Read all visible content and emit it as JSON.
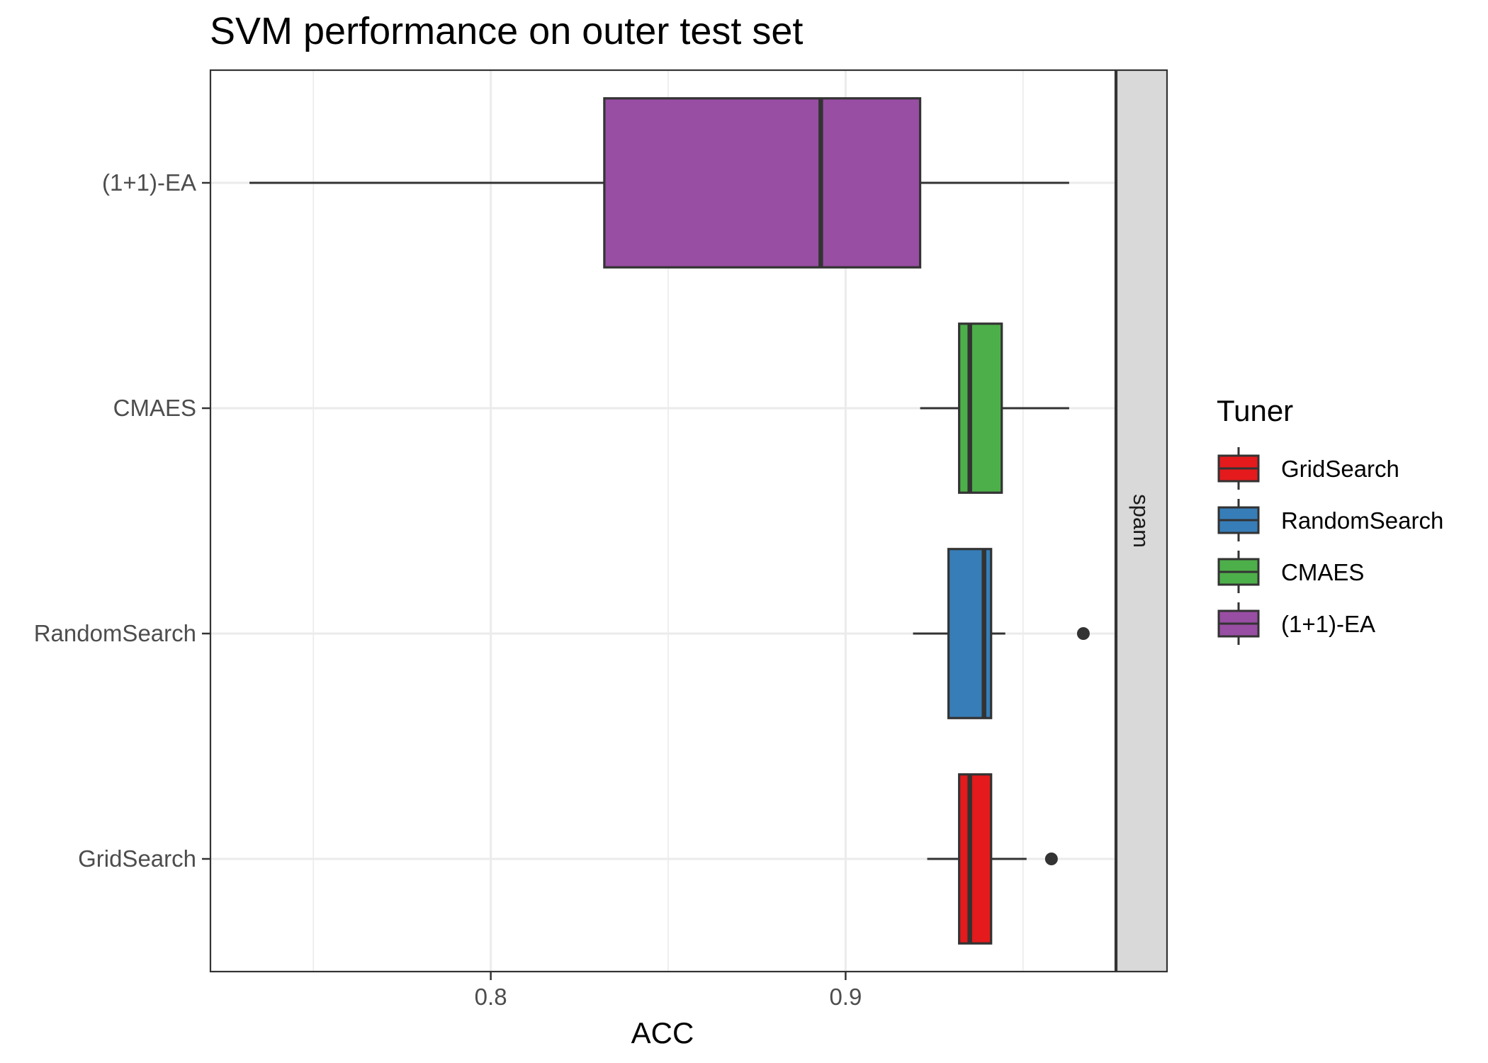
{
  "chart_data": {
    "type": "boxplot",
    "title": "SVM performance on outer test set",
    "xlabel": "ACC",
    "ylabel": "",
    "xlim": [
      0.721,
      0.976
    ],
    "x_ticks": [
      0.8,
      0.9
    ],
    "x_tick_labels": [
      "0.8",
      "0.9"
    ],
    "x_minor_gridlines": [
      0.75,
      0.85,
      0.95
    ],
    "grid": true,
    "facet_label": "spam",
    "categories": [
      "(1+1)-EA",
      "CMAES",
      "RandomSearch",
      "GridSearch"
    ],
    "series": [
      {
        "name": "(1+1)-EA",
        "color": "#984EA3",
        "whisker_low": 0.732,
        "q1": 0.832,
        "median": 0.893,
        "q3": 0.921,
        "whisker_high": 0.963,
        "outliers": []
      },
      {
        "name": "CMAES",
        "color": "#4DAF4A",
        "whisker_low": 0.921,
        "q1": 0.932,
        "median": 0.935,
        "q3": 0.944,
        "whisker_high": 0.963,
        "outliers": []
      },
      {
        "name": "RandomSearch",
        "color": "#377EB8",
        "whisker_low": 0.919,
        "q1": 0.929,
        "median": 0.939,
        "q3": 0.941,
        "whisker_high": 0.945,
        "outliers": [
          0.967
        ]
      },
      {
        "name": "GridSearch",
        "color": "#E41A1C",
        "whisker_low": 0.923,
        "q1": 0.932,
        "median": 0.935,
        "q3": 0.941,
        "whisker_high": 0.951,
        "outliers": [
          0.958
        ]
      }
    ],
    "legend": {
      "title": "Tuner",
      "position": "right",
      "entries": [
        {
          "label": "GridSearch",
          "color": "#E41A1C"
        },
        {
          "label": "RandomSearch",
          "color": "#377EB8"
        },
        {
          "label": "CMAES",
          "color": "#4DAF4A"
        },
        {
          "label": "(1+1)-EA",
          "color": "#984EA3"
        }
      ]
    }
  }
}
